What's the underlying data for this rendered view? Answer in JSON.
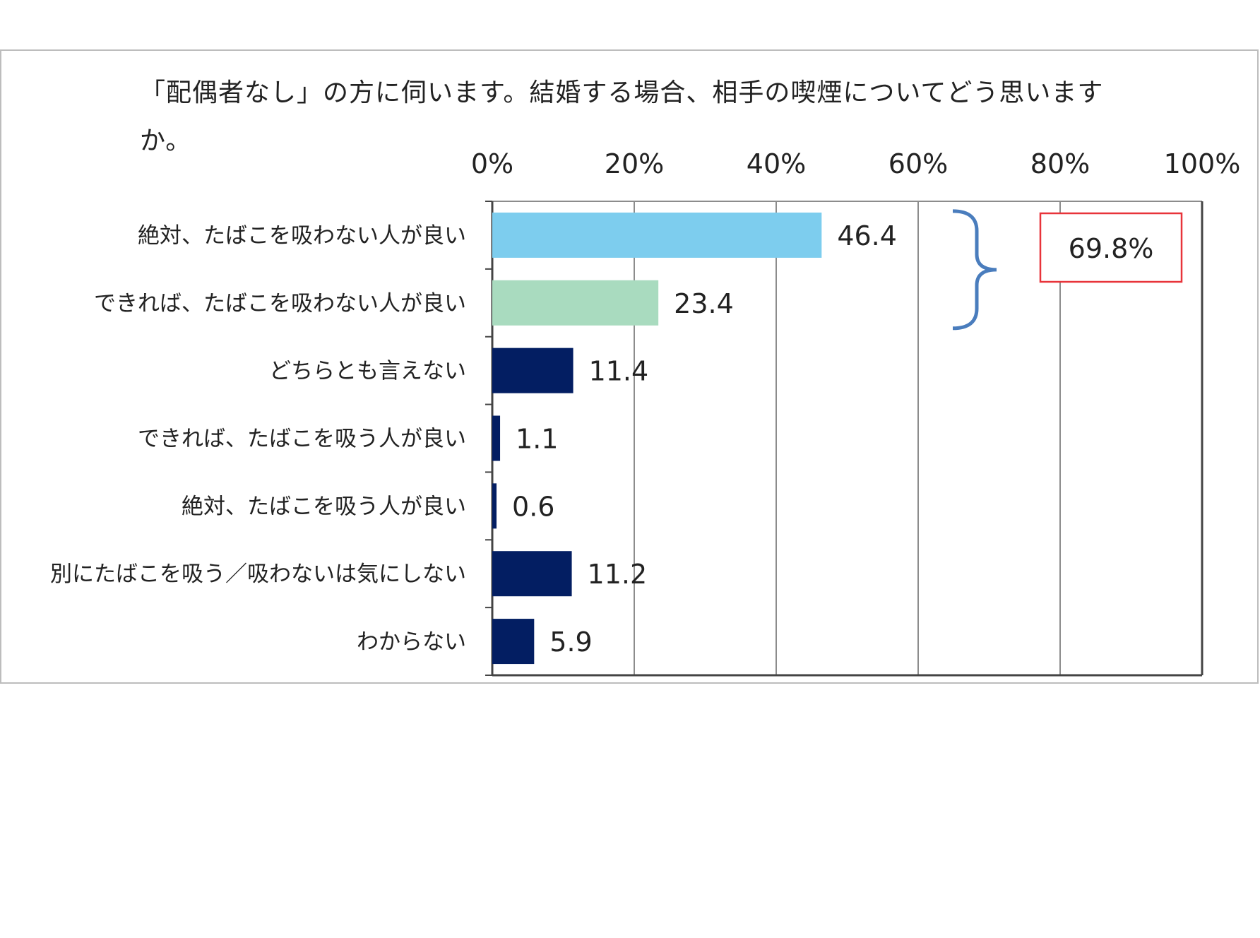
{
  "chart_data": {
    "type": "bar",
    "orientation": "horizontal",
    "title": "「配偶者なし」の方に伺います。結婚する場合、相手の喫煙についてどう思いますか。",
    "categories": [
      "絶対、たばこを吸わない人が良い",
      "できれば、たばこを吸わない人が良い",
      "どちらとも言えない",
      "できれば、たばこを吸う人が良い",
      "絶対、たばこを吸う人が良い",
      "別にたばこを吸う／吸わないは気にしない",
      "わからない"
    ],
    "values": [
      46.4,
      23.4,
      11.4,
      1.1,
      0.6,
      11.2,
      5.9
    ],
    "value_labels": [
      "46.4",
      "23.4",
      "11.4",
      "1.1",
      "0.6",
      "11.2",
      "5.9"
    ],
    "xlim": [
      0,
      100
    ],
    "x_ticks": [
      0,
      20,
      40,
      60,
      80,
      100
    ],
    "x_tick_labels": [
      "0%",
      "20%",
      "40%",
      "60%",
      "80%",
      "100%"
    ],
    "grid": true,
    "bar_colors": [
      "#7dcdee",
      "#a9dbbf",
      "#031e62",
      "#031e62",
      "#031e62",
      "#031e62",
      "#031e62"
    ],
    "annotation": {
      "text": "69.8%",
      "brackets_categories": [
        0,
        1
      ],
      "box_color": "#e8343a",
      "bracket_color": "#4a7dbd"
    }
  }
}
